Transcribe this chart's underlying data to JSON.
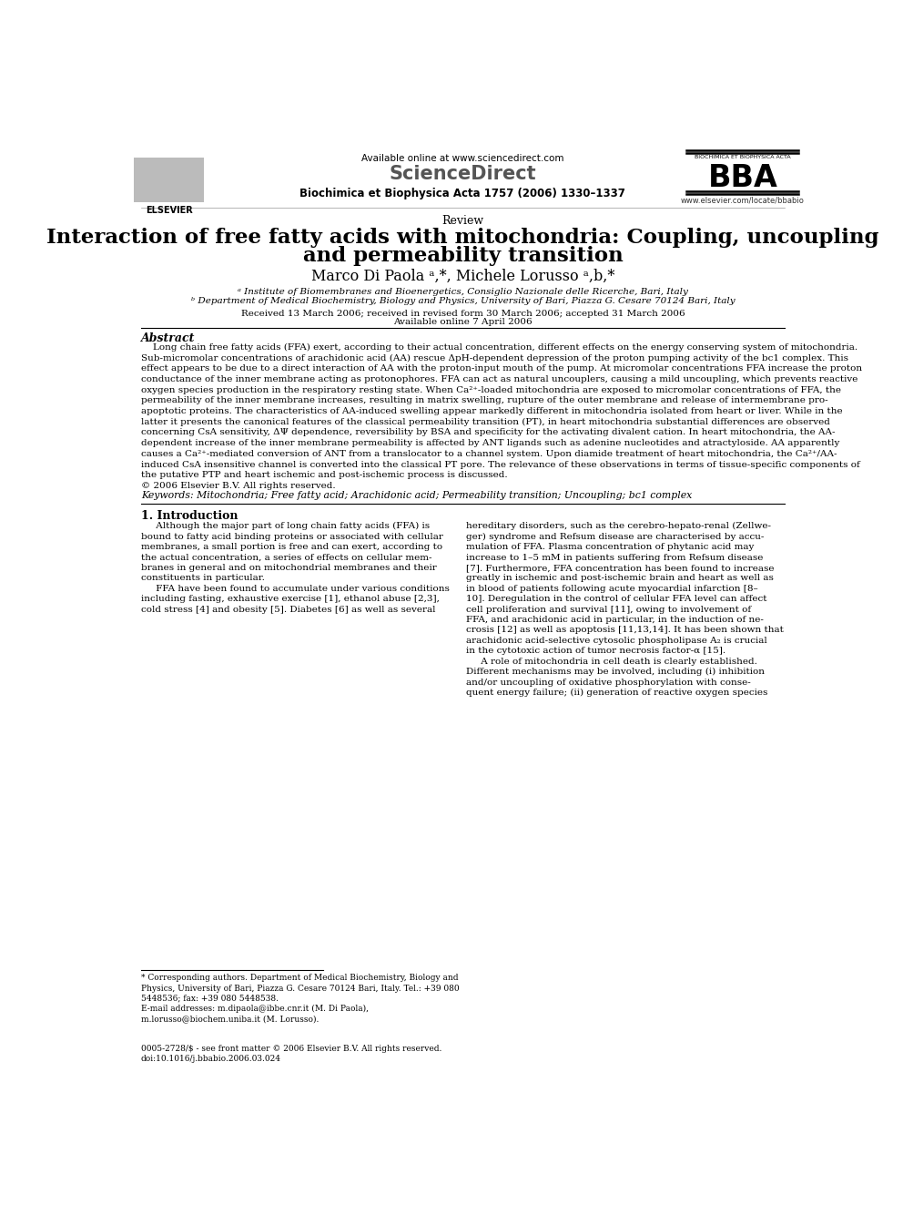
{
  "bg_color": "#ffffff",
  "header_available_text": "Available online at www.sciencedirect.com",
  "header_journal_text": "Biochimica et Biophysica Acta 1757 (2006) 1330–1337",
  "sciencedirect_text": "ScienceDirect",
  "bba_text": "BBA",
  "bba_subtitle": "BIOCHIMICA ET BIOPHYSICA ACTA",
  "elsevier_text": "ELSEVIER",
  "www_text": "www.elsevier.com/locate/bbabio",
  "review_text": "Review",
  "title_line1": "Interaction of free fatty acids with mitochondria: Coupling, uncoupling",
  "title_line2": "and permeability transition",
  "authors": "Marco Di Paola ᵃ,*, Michele Lorusso ᵃ,b,*",
  "affil_a": "ᵃ Institute of Biomembranes and Bioenergetics, Consiglio Nazionale delle Ricerche, Bari, Italy",
  "affil_b": "ᵇ Department of Medical Biochemistry, Biology and Physics, University of Bari, Piazza G. Cesare 70124 Bari, Italy",
  "received_text": "Received 13 March 2006; received in revised form 30 March 2006; accepted 31 March 2006",
  "available_online_text": "Available online 7 April 2006",
  "abstract_title": "Abstract",
  "abstract_lines": [
    "Long chain free fatty acids (FFA) exert, according to their actual concentration, different effects on the energy conserving system of mitochondria.",
    "Sub-micromolar concentrations of arachidonic acid (AA) rescue ΔpH-dependent depression of the proton pumping activity of the bc1 complex. This",
    "effect appears to be due to a direct interaction of AA with the proton-input mouth of the pump. At micromolar concentrations FFA increase the proton",
    "conductance of the inner membrane acting as protonophores. FFA can act as natural uncouplers, causing a mild uncoupling, which prevents reactive",
    "oxygen species production in the respiratory resting state. When Ca²⁺-loaded mitochondria are exposed to micromolar concentrations of FFA, the",
    "permeability of the inner membrane increases, resulting in matrix swelling, rupture of the outer membrane and release of intermembrane pro-",
    "apoptotic proteins. The characteristics of AA-induced swelling appear markedly different in mitochondria isolated from heart or liver. While in the",
    "latter it presents the canonical features of the classical permeability transition (PT), in heart mitochondria substantial differences are observed",
    "concerning CsA sensitivity, ΔΨ dependence, reversibility by BSA and specificity for the activating divalent cation. In heart mitochondria, the AA-",
    "dependent increase of the inner membrane permeability is affected by ANT ligands such as adenine nucleotides and atractyloside. AA apparently",
    "causes a Ca²⁺-mediated conversion of ANT from a translocator to a channel system. Upon diamide treatment of heart mitochondria, the Ca²⁺/AA-",
    "induced CsA insensitive channel is converted into the classical PT pore. The relevance of these observations in terms of tissue-specific components of",
    "the putative PTP and heart ischemic and post-ischemic process is discussed.",
    "© 2006 Elsevier B.V. All rights reserved."
  ],
  "keywords_text": "Keywords: Mitochondria; Free fatty acid; Arachidonic acid; Permeability transition; Uncoupling; bc1 complex",
  "section1_title": "1. Introduction",
  "col1_lines": [
    "     Although the major part of long chain fatty acids (FFA) is",
    "bound to fatty acid binding proteins or associated with cellular",
    "membranes, a small portion is free and can exert, according to",
    "the actual concentration, a series of effects on cellular mem-",
    "branes in general and on mitochondrial membranes and their",
    "constituents in particular.",
    "     FFA have been found to accumulate under various conditions",
    "including fasting, exhaustive exercise [1], ethanol abuse [2,3],",
    "cold stress [4] and obesity [5]. Diabetes [6] as well as several"
  ],
  "col2_lines": [
    "hereditary disorders, such as the cerebro-hepato-renal (Zellwe-",
    "ger) syndrome and Refsum disease are characterised by accu-",
    "mulation of FFA. Plasma concentration of phytanic acid may",
    "increase to 1–5 mM in patients suffering from Refsum disease",
    "[7]. Furthermore, FFA concentration has been found to increase",
    "greatly in ischemic and post-ischemic brain and heart as well as",
    "in blood of patients following acute myocardial infarction [8–",
    "10]. Deregulation in the control of cellular FFA level can affect",
    "cell proliferation and survival [11], owing to involvement of",
    "FFA, and arachidonic acid in particular, in the induction of ne-",
    "crosis [12] as well as apoptosis [11,13,14]. It has been shown that",
    "arachidonic acid-selective cytosolic phospholipase A₂ is crucial",
    "in the cytotoxic action of tumor necrosis factor-α [15].",
    "     A role of mitochondria in cell death is clearly established.",
    "Different mechanisms may be involved, including (i) inhibition",
    "and/or uncoupling of oxidative phosphorylation with conse-",
    "quent energy failure; (ii) generation of reactive oxygen species"
  ],
  "footnote_lines": [
    "* Corresponding authors. Department of Medical Biochemistry, Biology and",
    "Physics, University of Bari, Piazza G. Cesare 70124 Bari, Italy. Tel.: +39 080",
    "5448536; fax: +39 080 5448538.",
    "E-mail addresses: m.dipaola@ibbe.cnr.it (M. Di Paola),",
    "m.lorusso@biochem.uniba.it (M. Lorusso)."
  ],
  "footer_issn": "0005-2728/$ - see front matter © 2006 Elsevier B.V. All rights reserved.",
  "footer_doi": "doi:10.1016/j.bbabio.2006.03.024"
}
